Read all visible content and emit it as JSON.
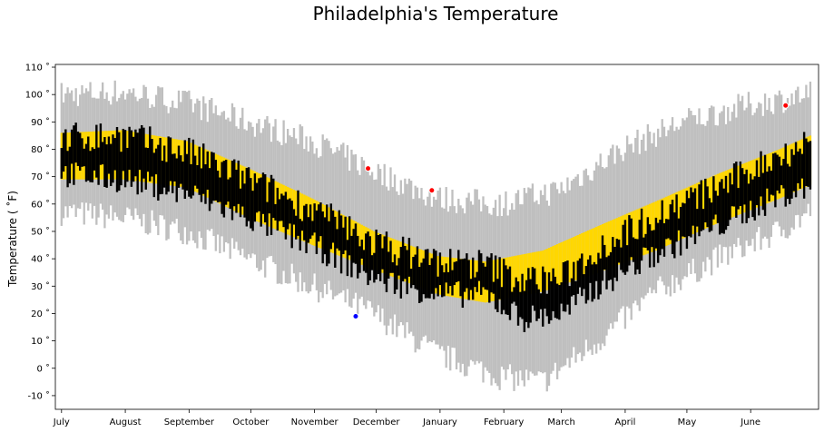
{
  "chart_data": {
    "type": "bar",
    "title": "Philadelphia's Temperature",
    "ylabel": "Temperature ( ˚F)",
    "xlabel": "",
    "ylim": [
      -15,
      111
    ],
    "yticks": [
      {
        "value": -10,
        "label": "-10 ˚"
      },
      {
        "value": 0,
        "label": "0 ˚"
      },
      {
        "value": 10,
        "label": "10 ˚"
      },
      {
        "value": 20,
        "label": "20 ˚"
      },
      {
        "value": 30,
        "label": "30 ˚"
      },
      {
        "value": 40,
        "label": "40 ˚"
      },
      {
        "value": 50,
        "label": "50 ˚"
      },
      {
        "value": 60,
        "label": "60 ˚"
      },
      {
        "value": 70,
        "label": "70 ˚"
      },
      {
        "value": 80,
        "label": "80 ˚"
      },
      {
        "value": 90,
        "label": "90 ˚"
      },
      {
        "value": 100,
        "label": "100 ˚"
      },
      {
        "value": 110,
        "label": "110 ˚"
      }
    ],
    "xticks": [
      {
        "day": 1,
        "label": "July"
      },
      {
        "day": 32,
        "label": "August"
      },
      {
        "day": 63,
        "label": "September"
      },
      {
        "day": 93,
        "label": "October"
      },
      {
        "day": 124,
        "label": "November"
      },
      {
        "day": 154,
        "label": "December"
      },
      {
        "day": 185,
        "label": "January"
      },
      {
        "day": 216,
        "label": "February"
      },
      {
        "day": 244,
        "label": "March"
      },
      {
        "day": 275,
        "label": "April"
      },
      {
        "day": 305,
        "label": "May"
      },
      {
        "day": 336,
        "label": "June"
      }
    ],
    "xlim": [
      -2,
      369
    ],
    "days": 365,
    "series": [
      {
        "key": "record",
        "color": "#bfbfbf",
        "low_anchors": [
          [
            1,
            57
          ],
          [
            31,
            55
          ],
          [
            62,
            50
          ],
          [
            92,
            40
          ],
          [
            123,
            30
          ],
          [
            153,
            20
          ],
          [
            184,
            5
          ],
          [
            214,
            -3
          ],
          [
            235,
            -5
          ],
          [
            262,
            10
          ],
          [
            290,
            28
          ],
          [
            320,
            40
          ],
          [
            350,
            50
          ],
          [
            365,
            57
          ]
        ],
        "high_anchors": [
          [
            1,
            100
          ],
          [
            31,
            101
          ],
          [
            62,
            97
          ],
          [
            92,
            90
          ],
          [
            123,
            83
          ],
          [
            153,
            72
          ],
          [
            184,
            62
          ],
          [
            214,
            60
          ],
          [
            243,
            65
          ],
          [
            273,
            80
          ],
          [
            303,
            90
          ],
          [
            334,
            96
          ],
          [
            365,
            100
          ]
        ]
      },
      {
        "key": "normal",
        "color": "#ffd700",
        "low_anchors": [
          [
            1,
            69
          ],
          [
            31,
            69
          ],
          [
            62,
            66
          ],
          [
            92,
            55
          ],
          [
            123,
            45
          ],
          [
            153,
            36
          ],
          [
            184,
            27
          ],
          [
            207,
            24
          ],
          [
            235,
            28
          ],
          [
            262,
            35
          ],
          [
            290,
            43
          ],
          [
            320,
            53
          ],
          [
            350,
            62
          ],
          [
            365,
            67
          ]
        ],
        "high_anchors": [
          [
            1,
            86
          ],
          [
            31,
            87
          ],
          [
            62,
            83
          ],
          [
            92,
            73
          ],
          [
            123,
            62
          ],
          [
            153,
            50
          ],
          [
            184,
            41
          ],
          [
            207,
            39
          ],
          [
            235,
            43
          ],
          [
            262,
            52
          ],
          [
            290,
            61
          ],
          [
            320,
            71
          ],
          [
            350,
            80
          ],
          [
            365,
            85
          ]
        ]
      },
      {
        "key": "actual",
        "color": "#000000",
        "low_anchors": [
          [
            1,
            71
          ],
          [
            31,
            69
          ],
          [
            62,
            64
          ],
          [
            92,
            55
          ],
          [
            123,
            45
          ],
          [
            153,
            33
          ],
          [
            184,
            27
          ],
          [
            207,
            27
          ],
          [
            225,
            18
          ],
          [
            245,
            20
          ],
          [
            262,
            30
          ],
          [
            290,
            42
          ],
          [
            320,
            52
          ],
          [
            350,
            63
          ],
          [
            365,
            66
          ]
        ],
        "high_anchors": [
          [
            1,
            84
          ],
          [
            31,
            85
          ],
          [
            62,
            79
          ],
          [
            92,
            69
          ],
          [
            123,
            58
          ],
          [
            153,
            46
          ],
          [
            184,
            39
          ],
          [
            207,
            38
          ],
          [
            225,
            32
          ],
          [
            245,
            33
          ],
          [
            262,
            44
          ],
          [
            290,
            56
          ],
          [
            320,
            66
          ],
          [
            350,
            78
          ],
          [
            365,
            83
          ]
        ]
      }
    ],
    "record_highs": [
      {
        "day": 150,
        "value": 73
      },
      {
        "day": 181,
        "value": 65
      },
      {
        "day": 353,
        "value": 96
      }
    ],
    "record_lows": [
      {
        "day": 144,
        "value": 19
      }
    ],
    "high_marker_color": "#ff0000",
    "low_marker_color": "#0000ff"
  }
}
